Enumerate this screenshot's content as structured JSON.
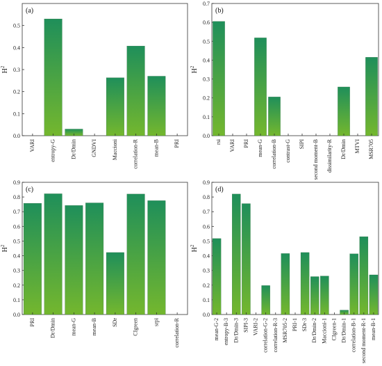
{
  "colors": {
    "bar_top": "#1f8f5a",
    "bar_bottom": "#74b72e",
    "axis": "#333333"
  },
  "chart_data": [
    {
      "type": "bar",
      "panel_label": "(a)",
      "ylabel": "H",
      "ylabel_sup": "2",
      "ylim": [
        0,
        0.6
      ],
      "yticks": [
        0.0,
        0.1,
        0.2,
        0.3,
        0.4,
        0.5
      ],
      "categories": [
        "VARI",
        "entropy-G",
        "Dr/Dmin",
        "GNDVI",
        "Maccioni",
        "correlation-R",
        "mean-B",
        "PRI"
      ],
      "values": [
        0,
        0.53,
        0.03,
        0,
        0.263,
        0.407,
        0.27,
        0
      ]
    },
    {
      "type": "bar",
      "panel_label": "(b)",
      "ylabel": "H",
      "ylabel_sup": "2",
      "ylim": [
        0,
        0.7
      ],
      "yticks": [
        0.0,
        0.1,
        0.2,
        0.3,
        0.4,
        0.5,
        0.6,
        0.7
      ],
      "categories": [
        "rsi",
        "VARI",
        "PRI",
        "mean-G",
        "correlation-B",
        "contrast-G",
        "SIPI",
        "second moment-B",
        "dissimilarity-R",
        "Dr/Dmin",
        "MTVI",
        "MSR705"
      ],
      "values": [
        0.605,
        0,
        0,
        0.518,
        0.205,
        0,
        0,
        0,
        0,
        0.258,
        0,
        0.415
      ]
    },
    {
      "type": "bar",
      "panel_label": "(c)",
      "ylabel": "H",
      "ylabel_sup": "2",
      "ylim": [
        0,
        0.9
      ],
      "yticks": [
        0.0,
        0.1,
        0.2,
        0.3,
        0.4,
        0.5,
        0.6,
        0.7,
        0.8,
        0.9
      ],
      "categories": [
        "PRI",
        "Dr/Dmin",
        "mean-G",
        "mean-B",
        "SDr",
        "CIgreen",
        "srpi",
        "correlation-R"
      ],
      "values": [
        0.757,
        0.822,
        0.742,
        0.76,
        0.422,
        0.82,
        0.775,
        0
      ]
    },
    {
      "type": "bar",
      "panel_label": "(d)",
      "ylabel": "H",
      "ylabel_sup": "2",
      "ylim": [
        0,
        0.9
      ],
      "yticks": [
        0.0,
        0.1,
        0.2,
        0.3,
        0.4,
        0.5,
        0.6,
        0.7,
        0.8,
        0.9
      ],
      "categories": [
        "mean-G-2",
        "entropy-B-3",
        "Dr/Dmin-3",
        "SIPI-3",
        "VARI-2",
        "correlation-G-2",
        "correlation-R-3",
        "MSR705-2",
        "PRI-1",
        "SDr-3",
        "Dr/Dmin-2",
        "Maccioni-1",
        "CIgreen-1",
        "Dr/Dmin-1",
        "correlation-B-1",
        "second moment-R-1",
        "mean-B-1"
      ],
      "values": [
        0.517,
        0,
        0.82,
        0.755,
        0,
        0.197,
        0,
        0.415,
        0,
        0.422,
        0.258,
        0.262,
        0,
        0.03,
        0.413,
        0.53,
        0.27
      ]
    }
  ]
}
